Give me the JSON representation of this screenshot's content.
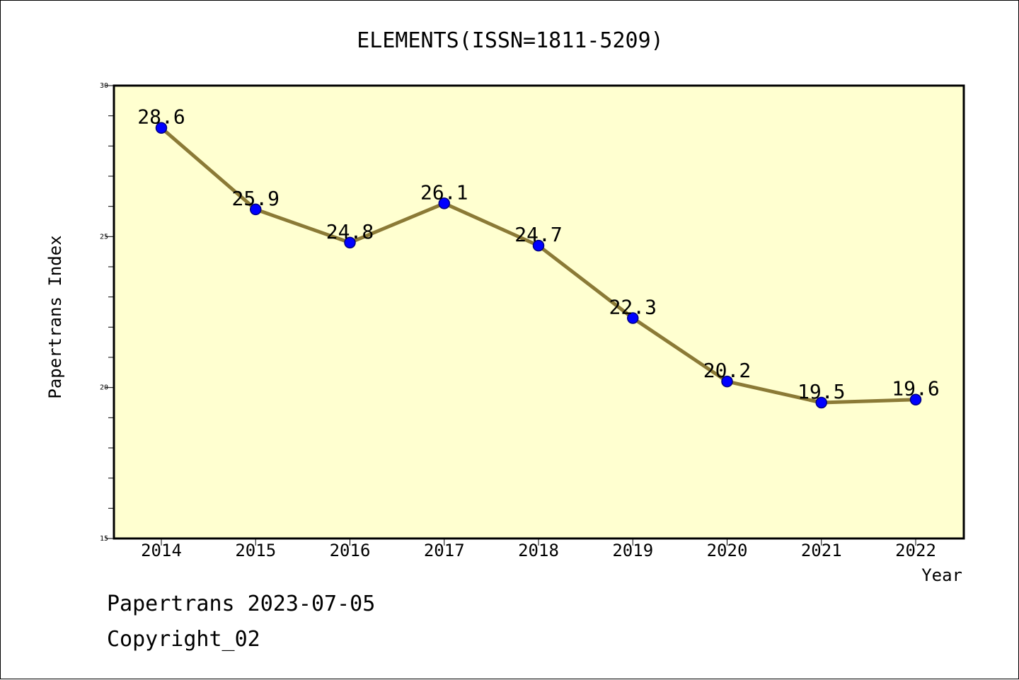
{
  "chart_data": {
    "type": "line",
    "title": "ELEMENTS(ISSN=1811-5209)",
    "xlabel": "Year",
    "ylabel": "Papertrans Index",
    "categories": [
      "2014",
      "2015",
      "2016",
      "2017",
      "2018",
      "2019",
      "2020",
      "2021",
      "2022"
    ],
    "values": [
      28.6,
      25.9,
      24.8,
      26.1,
      24.7,
      22.3,
      20.2,
      19.5,
      19.6
    ],
    "data_labels": [
      "28.6",
      "25.9",
      "24.8",
      "26.1",
      "24.7",
      "22.3",
      "20.2",
      "19.5",
      "19.6"
    ],
    "ylim": [
      15,
      30
    ],
    "yticks": [
      15,
      20,
      25,
      30
    ],
    "ytick_labels": [
      "15",
      "20",
      "25",
      "30"
    ],
    "grid": false,
    "legend": "none",
    "colors": {
      "plot_background": "#ffffd0",
      "line": "#8b7a36",
      "marker": "#0000ff",
      "marker_edge": "#000080"
    }
  },
  "footer": {
    "date_text": "Papertrans 2023-07-05",
    "copyright_text": "Copyright_02"
  }
}
